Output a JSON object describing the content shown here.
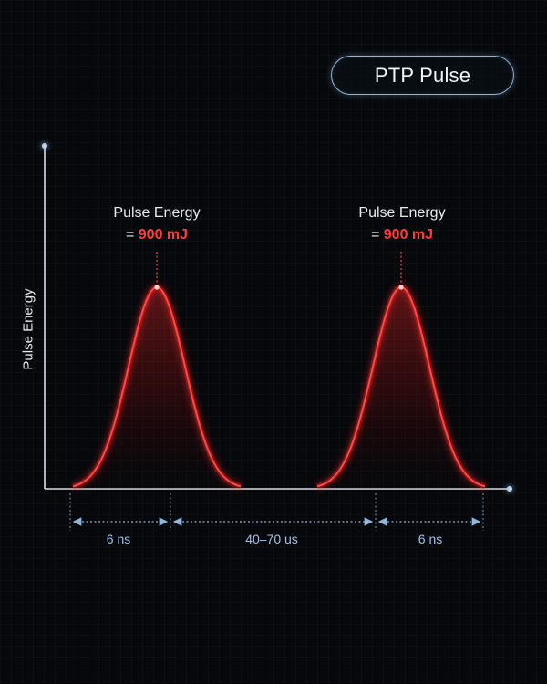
{
  "title": "PTP Pulse",
  "y_axis_label": "Pulse Energy",
  "pulses": [
    {
      "label": "Pulse Energy",
      "equals": "=",
      "value": "900 mJ"
    },
    {
      "label": "Pulse Energy",
      "equals": "=",
      "value": "900 mJ"
    }
  ],
  "dimensions": [
    {
      "label": "6 ns"
    },
    {
      "label": "40–70 us"
    },
    {
      "label": "6 ns"
    }
  ],
  "colors": {
    "pulse": "#ff3b3b",
    "axis": "#d8dde6",
    "dimension": "#8fb6dc",
    "background": "#06080b"
  }
}
